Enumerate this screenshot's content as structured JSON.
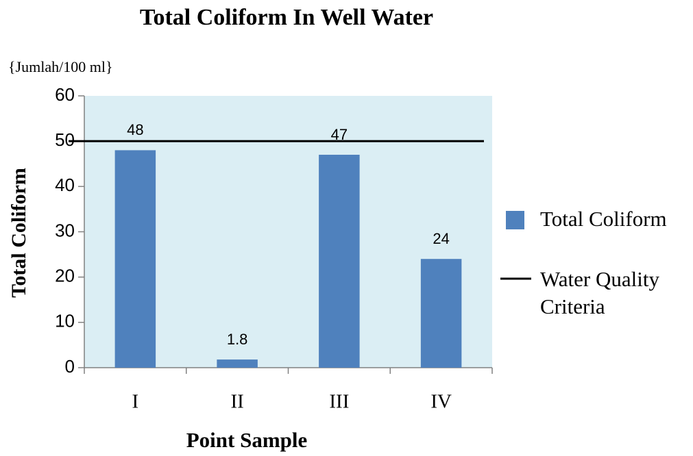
{
  "chart_data": {
    "type": "bar",
    "title": "Total Coliform In Well Water",
    "unit_label": "{Jumlah/100 ml}",
    "y_label": "Total Coliform",
    "x_label": "Point Sample",
    "categories": [
      "I",
      "II",
      "III",
      "IV"
    ],
    "series": [
      {
        "name": "Total Coliform",
        "color": "#4f81bd",
        "values": [
          48,
          1.8,
          47,
          24
        ]
      }
    ],
    "reference_line": {
      "name": "Water Quality Criteria",
      "color": "#000000",
      "value": 50
    },
    "ylim": [
      0,
      60
    ],
    "yticks": [
      0,
      10,
      20,
      30,
      40,
      50,
      60
    ],
    "legend": "right"
  }
}
